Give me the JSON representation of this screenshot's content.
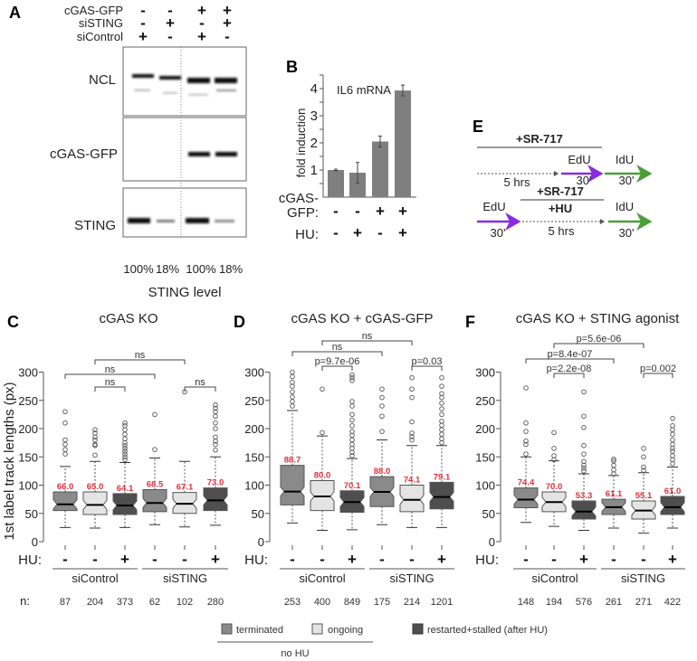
{
  "panel_letters": {
    "A": "A",
    "B": "B",
    "C": "C",
    "D": "D",
    "E": "E",
    "F": "F"
  },
  "colors": {
    "terminated": "#8a8a8a",
    "ongoing": "#e4e4e4",
    "restarted": "#4e4e4e",
    "edu": "#8a2be2",
    "idu": "#4a9e3a",
    "median_label": "#e0303a",
    "bar": "#7f7f7f"
  },
  "panel_a": {
    "row_labels": [
      "cGAS-GFP",
      "siSTING",
      "siControl"
    ],
    "rows": [
      [
        "-",
        "-",
        "+",
        "+"
      ],
      [
        "-",
        "+",
        "-",
        "+"
      ],
      [
        "+",
        "-",
        "+",
        "-"
      ]
    ],
    "blots": [
      "NCL",
      "cGAS-GFP",
      "STING"
    ],
    "sting_levels": [
      "100%",
      "18%",
      "100%",
      "18%"
    ],
    "sting_level_title": "STING level"
  },
  "panel_e": {
    "top": {
      "treatment": "+SR-717",
      "pulse1": "EdU",
      "pulse2": "IdU",
      "t0": "5 hrs",
      "t1": "30'",
      "t2": "30'"
    },
    "bottom": {
      "treatment1": "+SR-717",
      "treatment2": "+HU",
      "pulse1": "EdU",
      "pulse2": "IdU",
      "t1": "30'",
      "t0": "5 hrs",
      "t2": "30'"
    }
  },
  "legend": {
    "terminated": "terminated",
    "ongoing": "ongoing",
    "restarted": "restarted+stalled (after HU)",
    "no_hu": "no HU"
  },
  "chart_data": [
    {
      "id": "B",
      "type": "bar",
      "title": "IL6 mRNA",
      "ylabel": "fold induction",
      "ylim": [
        0,
        4.5
      ],
      "yticks": [
        1,
        2,
        3,
        4
      ],
      "row_labels": [
        "cGAS-",
        "GFP:",
        "HU:"
      ],
      "cgas_gfp": [
        "-",
        "-",
        "+",
        "+"
      ],
      "hu": [
        "-",
        "+",
        "-",
        "+"
      ],
      "values": [
        1.0,
        0.9,
        2.05,
        3.93
      ],
      "errors": [
        0.03,
        0.38,
        0.2,
        0.2
      ]
    },
    {
      "id": "C",
      "type": "box",
      "title": "cGAS KO",
      "ylabel": "1st label track lengths (px)",
      "ylim": [
        0,
        300
      ],
      "yticks": [
        0,
        50,
        100,
        150,
        200,
        250,
        300
      ],
      "hu_label": "HU:",
      "n_label": "n:",
      "hu": [
        "-",
        "-",
        "+",
        "-",
        "-",
        "+"
      ],
      "groups": [
        "siControl",
        "siSTING"
      ],
      "n": [
        "87",
        "204",
        "373",
        "62",
        "102",
        "280"
      ],
      "types": [
        "terminated",
        "ongoing",
        "restarted",
        "terminated",
        "ongoing",
        "restarted"
      ],
      "boxes": [
        {
          "median": 66.0,
          "median_label": "66.0",
          "q1": 55,
          "q3": 88,
          "lo": 25,
          "hi": 133,
          "outliers": [
            155,
            163,
            172,
            180,
            210,
            230
          ]
        },
        {
          "median": 65.0,
          "median_label": "65.0",
          "q1": 48,
          "q3": 88,
          "lo": 24,
          "hi": 142,
          "outliers": [
            153,
            170,
            172,
            180,
            185,
            192,
            198
          ]
        },
        {
          "median": 64.1,
          "median_label": "64.1",
          "q1": 48,
          "q3": 85,
          "lo": 25,
          "hi": 140,
          "outliers": [
            145,
            150,
            155,
            160,
            165,
            170,
            175,
            182,
            190,
            198,
            205,
            210
          ]
        },
        {
          "median": 68.5,
          "median_label": "68.5",
          "q1": 53,
          "q3": 92,
          "lo": 30,
          "hi": 148,
          "outliers": [
            163,
            225
          ]
        },
        {
          "median": 67.1,
          "median_label": "67.1",
          "q1": 50,
          "q3": 87,
          "lo": 26,
          "hi": 142,
          "outliers": [
            265
          ]
        },
        {
          "median": 73.0,
          "median_label": "73.0",
          "q1": 55,
          "q3": 95,
          "lo": 29,
          "hi": 150,
          "outliers": [
            162,
            172,
            178,
            185,
            200,
            210,
            222,
            230,
            236,
            242
          ]
        }
      ],
      "brackets": [
        {
          "from": 2,
          "to": 3,
          "label": "ns"
        },
        {
          "from": 5,
          "to": 6,
          "label": "ns"
        },
        {
          "from": 1,
          "to": 4,
          "label": "ns"
        },
        {
          "from": 2,
          "to": 5,
          "label": "ns"
        }
      ]
    },
    {
      "id": "D",
      "type": "box",
      "title": "cGAS KO + cGAS-GFP",
      "ylim": [
        0,
        300
      ],
      "yticks": [
        0,
        50,
        100,
        150,
        200,
        250,
        300
      ],
      "hu_label": "HU:",
      "hu": [
        "-",
        "-",
        "+",
        "-",
        "-",
        "+"
      ],
      "groups": [
        "siControl",
        "siSTING"
      ],
      "n": [
        "253",
        "400",
        "849",
        "175",
        "214",
        "1201"
      ],
      "types": [
        "terminated",
        "ongoing",
        "restarted",
        "terminated",
        "ongoing",
        "restarted"
      ],
      "boxes": [
        {
          "median": 88.7,
          "median_label": "88.7",
          "q1": 65,
          "q3": 135,
          "lo": 33,
          "hi": 232,
          "outliers": [
            240,
            248,
            256,
            265,
            275,
            282,
            292,
            300
          ]
        },
        {
          "median": 80.0,
          "median_label": "80.0",
          "q1": 55,
          "q3": 108,
          "lo": 20,
          "hi": 187,
          "outliers": [
            193,
            270
          ]
        },
        {
          "median": 70.1,
          "median_label": "70.1",
          "q1": 52,
          "q3": 90,
          "lo": 21,
          "hi": 147,
          "outliers": [
            152,
            158,
            165,
            172,
            180,
            188,
            195,
            205,
            215,
            225,
            240,
            248,
            285,
            290,
            295
          ]
        },
        {
          "median": 88.0,
          "median_label": "88.0",
          "q1": 62,
          "q3": 115,
          "lo": 30,
          "hi": 180,
          "outliers": [
            195,
            222,
            240,
            255,
            270
          ]
        },
        {
          "median": 74.1,
          "median_label": "74.1",
          "q1": 53,
          "q3": 100,
          "lo": 25,
          "hi": 170,
          "outliers": [
            180,
            186,
            192,
            212,
            255,
            270,
            290
          ]
        },
        {
          "median": 79.1,
          "median_label": "79.1",
          "q1": 58,
          "q3": 105,
          "lo": 25,
          "hi": 170,
          "outliers": [
            175,
            182,
            190,
            198,
            206,
            213,
            225,
            235,
            245,
            255,
            262,
            275,
            290
          ]
        }
      ],
      "brackets": [
        {
          "from": 2,
          "to": 3,
          "label": "p=9.7e-06"
        },
        {
          "from": 5,
          "to": 6,
          "label": "p=0.03"
        },
        {
          "from": 1,
          "to": 4,
          "label": "ns"
        },
        {
          "from": 2,
          "to": 5,
          "label": "ns"
        }
      ]
    },
    {
      "id": "F",
      "type": "box",
      "title": "cGAS KO + STING agonist",
      "ylim": [
        0,
        300
      ],
      "yticks": [
        0,
        50,
        100,
        150,
        200,
        250,
        300
      ],
      "hu_label": "HU:",
      "hu": [
        "-",
        "-",
        "+",
        "-",
        "-",
        "+"
      ],
      "groups": [
        "siControl",
        "siSTING"
      ],
      "n": [
        "148",
        "194",
        "576",
        "261",
        "271",
        "422"
      ],
      "types": [
        "terminated",
        "ongoing",
        "restarted",
        "terminated",
        "ongoing",
        "restarted"
      ],
      "boxes": [
        {
          "median": 74.4,
          "median_label": "74.4",
          "q1": 60,
          "q3": 95,
          "lo": 34,
          "hi": 150,
          "outliers": [
            155,
            172,
            178,
            195,
            210,
            272
          ]
        },
        {
          "median": 70.0,
          "median_label": "70.0",
          "q1": 53,
          "q3": 88,
          "lo": 27,
          "hi": 143,
          "outliers": [
            145,
            152,
            165,
            193
          ]
        },
        {
          "median": 53.3,
          "median_label": "53.3",
          "q1": 40,
          "q3": 72,
          "lo": 20,
          "hi": 120,
          "outliers": [
            125,
            130,
            135,
            142,
            155,
            170,
            202,
            222,
            265
          ]
        },
        {
          "median": 61.1,
          "median_label": "61.1",
          "q1": 48,
          "q3": 75,
          "lo": 24,
          "hi": 117,
          "outliers": [
            120,
            127,
            135,
            143,
            146
          ]
        },
        {
          "median": 55.1,
          "median_label": "55.1",
          "q1": 40,
          "q3": 72,
          "lo": 15,
          "hi": 122,
          "outliers": [
            126,
            132,
            150,
            165
          ]
        },
        {
          "median": 61.0,
          "median_label": "61.0",
          "q1": 48,
          "q3": 80,
          "lo": 24,
          "hi": 132,
          "outliers": [
            138,
            145,
            152,
            160,
            165,
            172,
            180,
            190,
            198,
            205,
            218
          ]
        }
      ],
      "brackets": [
        {
          "from": 2,
          "to": 3,
          "label": "p=2.2e-08"
        },
        {
          "from": 5,
          "to": 6,
          "label": "p=0.002"
        },
        {
          "from": 1,
          "to": 4,
          "label": "p=8.4e-07"
        },
        {
          "from": 2,
          "to": 5,
          "label": "p=5.6e-06"
        }
      ]
    }
  ]
}
